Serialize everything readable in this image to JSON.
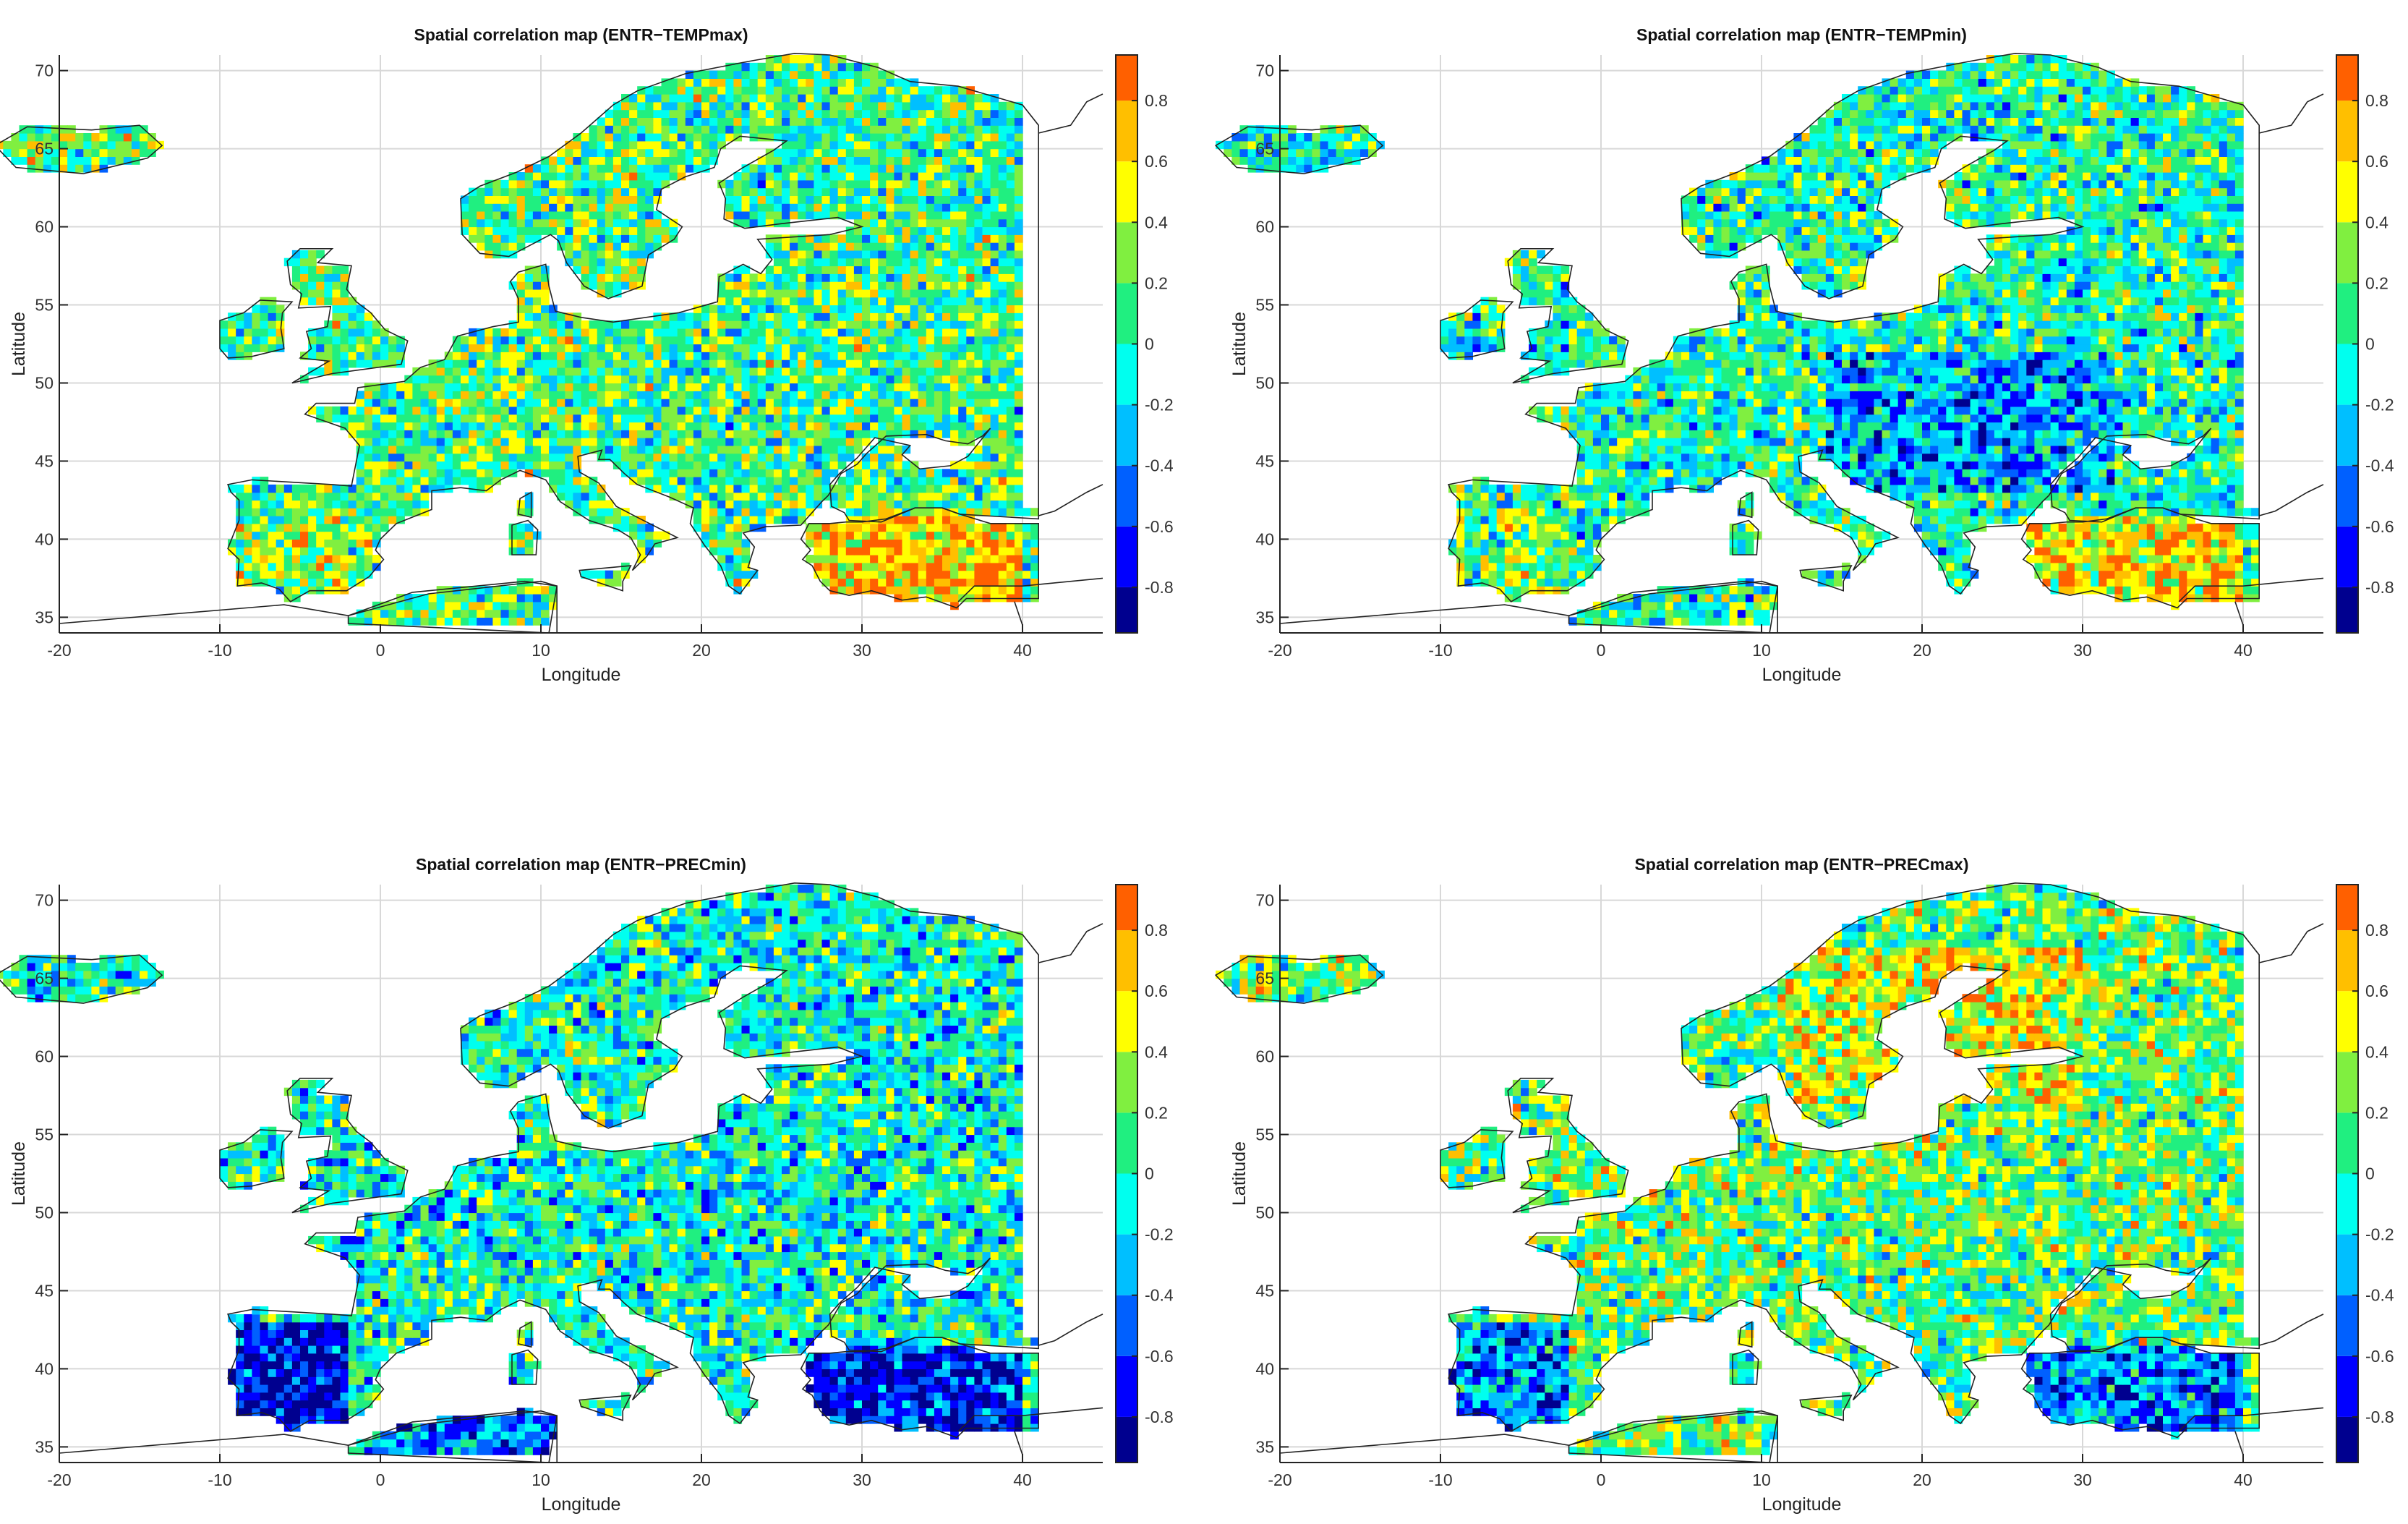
{
  "colormap": [
    "#00008f",
    "#0000ff",
    "#0060ff",
    "#00bfff",
    "#00ffef",
    "#20ef80",
    "#80ef40",
    "#ffff00",
    "#ffbf00",
    "#ff6000"
  ],
  "chart_data": [
    {
      "type": "heatmap",
      "title": "Spatial correlation map (ENTR−TEMPmax)",
      "xlabel": "Longitude",
      "ylabel": "Latitude",
      "xlim": [
        -20,
        45
      ],
      "ylim": [
        34,
        71
      ],
      "xticks": [
        "-20",
        "-10",
        "0",
        "10",
        "20",
        "30",
        "40"
      ],
      "yticks": [
        "35",
        "40",
        "45",
        "50",
        "55",
        "60",
        "65",
        "70"
      ],
      "clim": [
        -0.95,
        0.95
      ],
      "cticks": [
        "-0.8",
        "-0.6",
        "-0.4",
        "-0.2",
        "0",
        "0.2",
        "0.4",
        "0.6",
        "0.8"
      ],
      "grid": true,
      "pattern": {
        "seed": 11,
        "bias": 0.12,
        "rules": [
          [
            26,
            40,
            35,
            41.5,
            0.55
          ],
          [
            20,
            30,
            60,
            68,
            -0.05
          ],
          [
            -10,
            -2,
            36,
            42,
            0.15
          ]
        ]
      }
    },
    {
      "type": "heatmap",
      "title": "Spatial correlation map (ENTR−TEMPmin)",
      "xlabel": "Longitude",
      "ylabel": "Latitude",
      "xlim": [
        -20,
        45
      ],
      "ylim": [
        34,
        71
      ],
      "xticks": [
        "-20",
        "-10",
        "0",
        "10",
        "20",
        "30",
        "40"
      ],
      "yticks": [
        "35",
        "40",
        "45",
        "50",
        "55",
        "60",
        "65",
        "70"
      ],
      "clim": [
        -0.95,
        0.95
      ],
      "cticks": [
        "-0.8",
        "-0.6",
        "-0.4",
        "-0.2",
        "0",
        "0.2",
        "0.4",
        "0.6",
        "0.8"
      ],
      "grid": true,
      "pattern": {
        "seed": 23,
        "bias": 0.02,
        "rules": [
          [
            26,
            40,
            35,
            41.5,
            0.55
          ],
          [
            14,
            32,
            43,
            52,
            -0.35
          ],
          [
            -10,
            -2,
            36,
            42,
            0.2
          ]
        ]
      }
    },
    {
      "type": "heatmap",
      "title": "Spatial correlation map (ENTR−PRECmin)",
      "xlabel": "Longitude",
      "ylabel": "Latitude",
      "xlim": [
        -20,
        45
      ],
      "ylim": [
        34,
        71
      ],
      "xticks": [
        "-20",
        "-10",
        "0",
        "10",
        "20",
        "30",
        "40"
      ],
      "yticks": [
        "35",
        "40",
        "45",
        "50",
        "55",
        "60",
        "65",
        "70"
      ],
      "clim": [
        -0.95,
        0.95
      ],
      "cticks": [
        "-0.8",
        "-0.6",
        "-0.4",
        "-0.2",
        "0",
        "0.2",
        "0.4",
        "0.6",
        "0.8"
      ],
      "grid": true,
      "pattern": {
        "seed": 37,
        "bias": -0.05,
        "rules": [
          [
            -10,
            -2,
            36,
            43,
            -0.7
          ],
          [
            26,
            40,
            35,
            41.5,
            -0.65
          ],
          [
            0,
            12,
            34.5,
            38,
            -0.5
          ]
        ]
      }
    },
    {
      "type": "heatmap",
      "title": "Spatial correlation map (ENTR−PRECmax)",
      "xlabel": "Longitude",
      "ylabel": "Latitude",
      "xlim": [
        -20,
        45
      ],
      "ylim": [
        34,
        71
      ],
      "xticks": [
        "-20",
        "-10",
        "0",
        "10",
        "20",
        "30",
        "40"
      ],
      "yticks": [
        "35",
        "40",
        "45",
        "50",
        "55",
        "60",
        "65",
        "70"
      ],
      "clim": [
        -0.95,
        0.95
      ],
      "cticks": [
        "-0.8",
        "-0.6",
        "-0.4",
        "-0.2",
        "0",
        "0.2",
        "0.4",
        "0.6",
        "0.8"
      ],
      "grid": true,
      "pattern": {
        "seed": 53,
        "bias": 0.18,
        "rules": [
          [
            -10,
            -2,
            36,
            43,
            -0.55
          ],
          [
            26,
            40,
            35,
            41.5,
            -0.6
          ],
          [
            12,
            30,
            57,
            67,
            0.3
          ]
        ]
      }
    }
  ]
}
